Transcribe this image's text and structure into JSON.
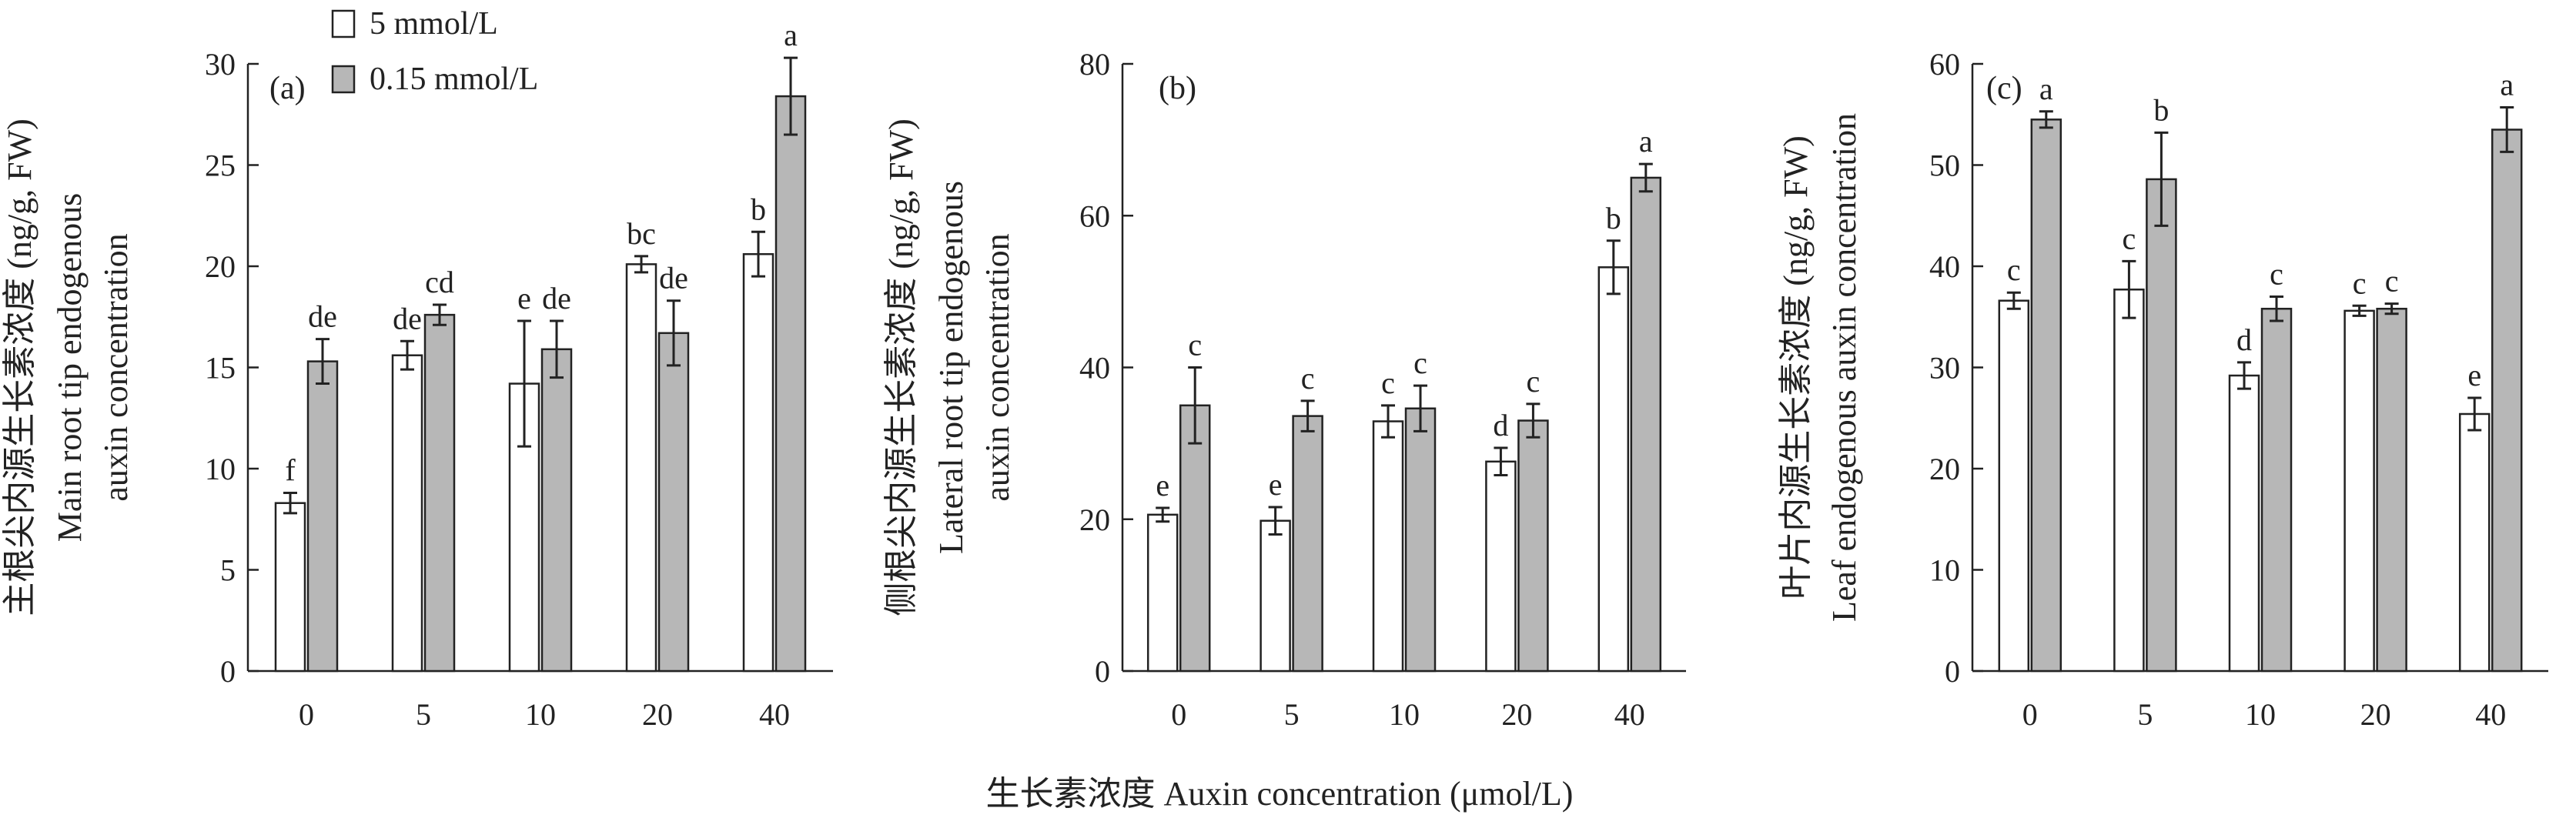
{
  "figure": {
    "xlabel": "生长素浓度 Auxin concentration (μmol/L)",
    "legend": [
      {
        "name": "5 mmol/L",
        "color": "#ffffff"
      },
      {
        "name": "0.15 mmol/L",
        "color": "#b7b7b7"
      }
    ]
  },
  "chart_data": [
    {
      "type": "bar",
      "panel_label": "(a)",
      "ylabel_cn": "主根尖内源生长素浓度 (ng/g, FW)",
      "ylabel_en_1": "Main root tip endogenous",
      "ylabel_en_2": "auxin concentration",
      "categories": [
        "0",
        "5",
        "10",
        "20",
        "40"
      ],
      "ylim": [
        0,
        30
      ],
      "yticks": [
        0,
        5,
        10,
        15,
        20,
        25,
        30
      ],
      "series": [
        {
          "name": "5 mmol/L",
          "color": "#ffffff",
          "values": [
            8.3,
            15.6,
            14.2,
            20.1,
            20.6
          ],
          "errors": [
            0.5,
            0.7,
            3.1,
            0.4,
            1.1
          ],
          "letters": [
            "f",
            "de",
            "e",
            "bc",
            "b"
          ]
        },
        {
          "name": "0.15 mmol/L",
          "color": "#b7b7b7",
          "values": [
            15.3,
            17.6,
            15.9,
            16.7,
            28.4
          ],
          "errors": [
            1.1,
            0.5,
            1.4,
            1.6,
            1.9
          ],
          "letters": [
            "de",
            "cd",
            "de",
            "de",
            "a"
          ]
        }
      ]
    },
    {
      "type": "bar",
      "panel_label": "(b)",
      "ylabel_cn": "侧根尖内源生长素浓度 (ng/g, FW)",
      "ylabel_en_1": "Lateral root tip endogenous",
      "ylabel_en_2": "auxin concentration",
      "categories": [
        "0",
        "5",
        "10",
        "20",
        "40"
      ],
      "ylim": [
        0,
        80
      ],
      "yticks": [
        0,
        20,
        40,
        60,
        80
      ],
      "series": [
        {
          "name": "5 mmol/L",
          "color": "#ffffff",
          "values": [
            20.6,
            19.8,
            32.9,
            27.6,
            53.2
          ],
          "errors": [
            0.9,
            1.8,
            2.1,
            1.8,
            3.5
          ],
          "letters": [
            "e",
            "e",
            "c",
            "d",
            "b"
          ]
        },
        {
          "name": "0.15 mmol/L",
          "color": "#b7b7b7",
          "values": [
            35.0,
            33.6,
            34.6,
            33.0,
            65.0
          ],
          "errors": [
            5.0,
            2.0,
            3.0,
            2.2,
            1.8
          ],
          "letters": [
            "c",
            "c",
            "c",
            "c",
            "a"
          ]
        }
      ]
    },
    {
      "type": "bar",
      "panel_label": "(c)",
      "ylabel_cn": "叶片内源生长素浓度 (ng/g, FW)",
      "ylabel_en_1": "Leaf endogenous auxin concentration",
      "ylabel_en_2": "",
      "categories": [
        "0",
        "5",
        "10",
        "20",
        "40"
      ],
      "ylim": [
        0,
        60
      ],
      "yticks": [
        0,
        10,
        20,
        30,
        40,
        50,
        60
      ],
      "series": [
        {
          "name": "5 mmol/L",
          "color": "#ffffff",
          "values": [
            36.6,
            37.7,
            29.2,
            35.6,
            25.4
          ],
          "errors": [
            0.8,
            2.8,
            1.3,
            0.5,
            1.6
          ],
          "letters": [
            "c",
            "c",
            "d",
            "c",
            "e"
          ]
        },
        {
          "name": "0.15 mmol/L",
          "color": "#b7b7b7",
          "values": [
            54.5,
            48.6,
            35.8,
            35.8,
            53.5
          ],
          "errors": [
            0.8,
            4.6,
            1.2,
            0.5,
            2.2
          ],
          "letters": [
            "a",
            "b",
            "c",
            "c",
            "a"
          ]
        }
      ]
    }
  ]
}
